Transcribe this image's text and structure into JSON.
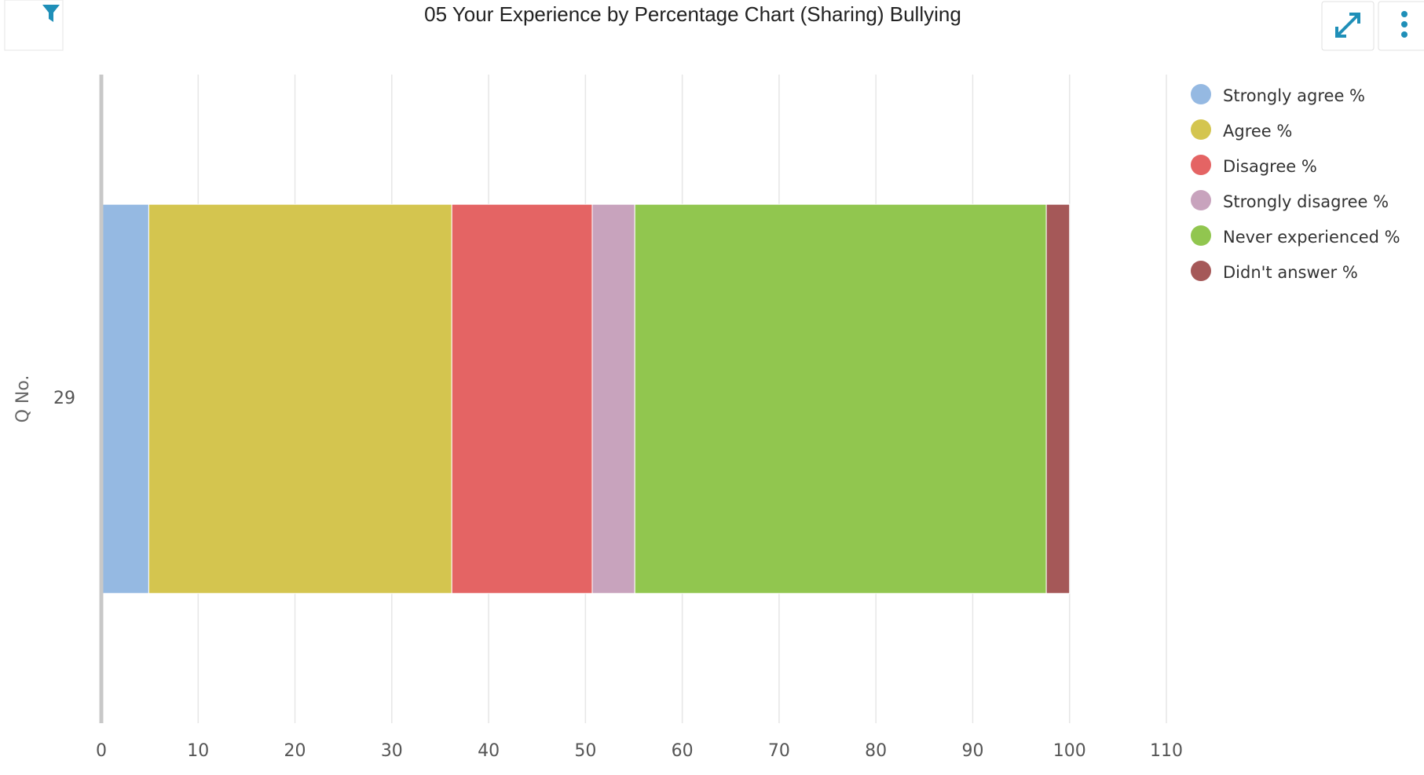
{
  "chart_data": {
    "type": "stacked-bar-horizontal",
    "title": "05 Your Experience by Percentage Chart (Sharing) Bullying",
    "y_label": "Q No.",
    "categories": [
      "29"
    ],
    "series": [
      {
        "name": "Strongly agree %",
        "color": "#95b9e2",
        "values": [
          4.9
        ]
      },
      {
        "name": "Agree %",
        "color": "#d4c54f",
        "values": [
          31.3
        ]
      },
      {
        "name": "Disagree %",
        "color": "#e46464",
        "values": [
          14.5
        ]
      },
      {
        "name": "Strongly disagree %",
        "color": "#c8a3bd",
        "values": [
          4.4
        ]
      },
      {
        "name": "Never experienced %",
        "color": "#91c64f",
        "values": [
          42.5
        ]
      },
      {
        "name": "Didn't answer %",
        "color": "#a55858",
        "values": [
          2.4
        ]
      }
    ],
    "xlim": [
      0,
      110
    ],
    "xticks": [
      0,
      10,
      20,
      30,
      40,
      50,
      60,
      70,
      80,
      90,
      100,
      110
    ],
    "grid": true,
    "legend": "right"
  }
}
